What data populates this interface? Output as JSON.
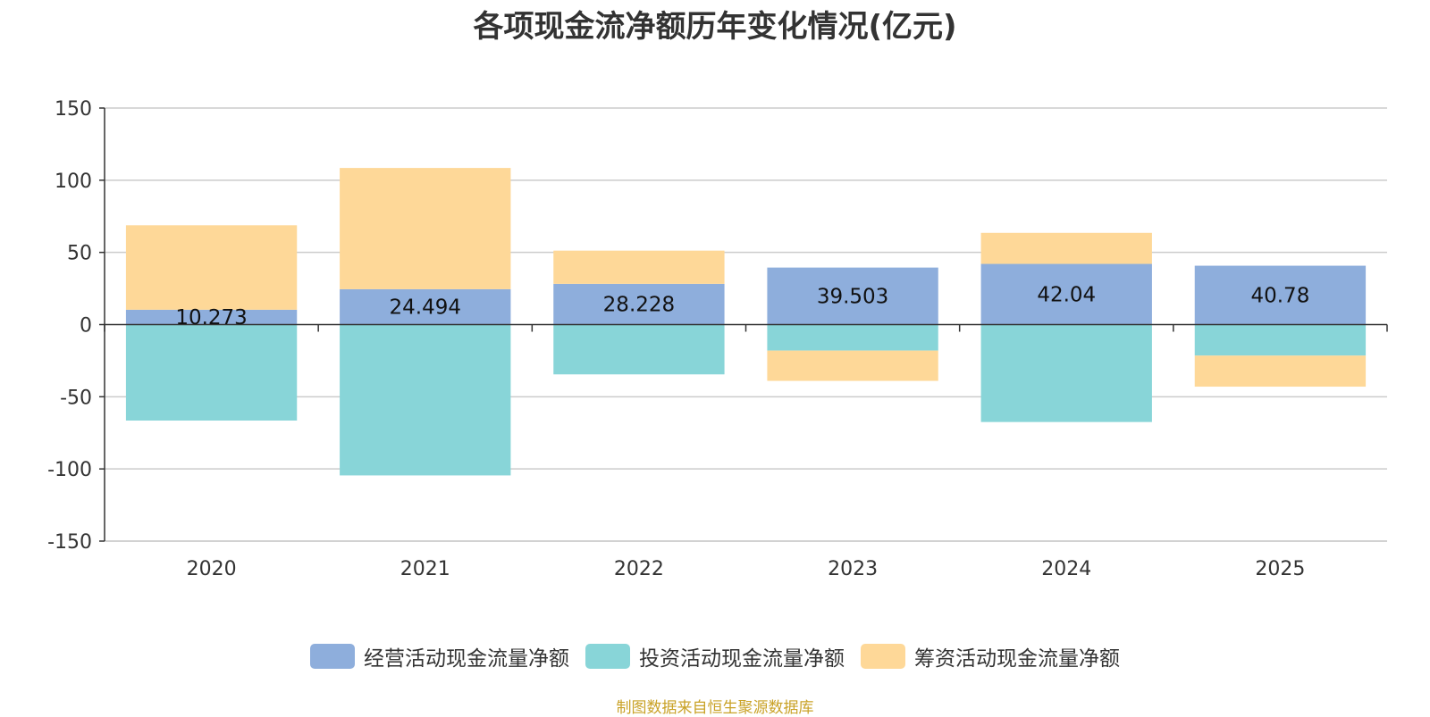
{
  "chart_data": {
    "type": "bar",
    "stacked": true,
    "title": "各项现金流净额历年变化情况(亿元)",
    "categories": [
      "2020",
      "2021",
      "2022",
      "2023",
      "2024",
      "2025"
    ],
    "series": [
      {
        "name": "经营活动现金流量净额",
        "color": "#8eaedc",
        "values": [
          10.273,
          24.494,
          28.228,
          39.503,
          42.04,
          40.78
        ],
        "labels": [
          "10.273",
          "24.494",
          "28.228",
          "39.503",
          "42.04",
          "40.78"
        ]
      },
      {
        "name": "投资活动现金流量净额",
        "color": "#88d5d8",
        "values": [
          -66.5,
          -104.5,
          -34.5,
          -18.0,
          -67.5,
          -21.5
        ]
      },
      {
        "name": "筹资活动现金流量净额",
        "color": "#fed898",
        "values": [
          58.5,
          84.0,
          23.0,
          -21.0,
          21.5,
          -21.5
        ]
      }
    ],
    "ylim": [
      -150,
      150
    ],
    "yticks": [
      "150",
      "100",
      "50",
      "0",
      "-50",
      "-100",
      "-150"
    ],
    "ytick_values": [
      150,
      100,
      50,
      0,
      -50,
      -100,
      -150
    ],
    "grid": true,
    "legend": "bottom",
    "source": "制图数据来自恒生聚源数据库"
  }
}
